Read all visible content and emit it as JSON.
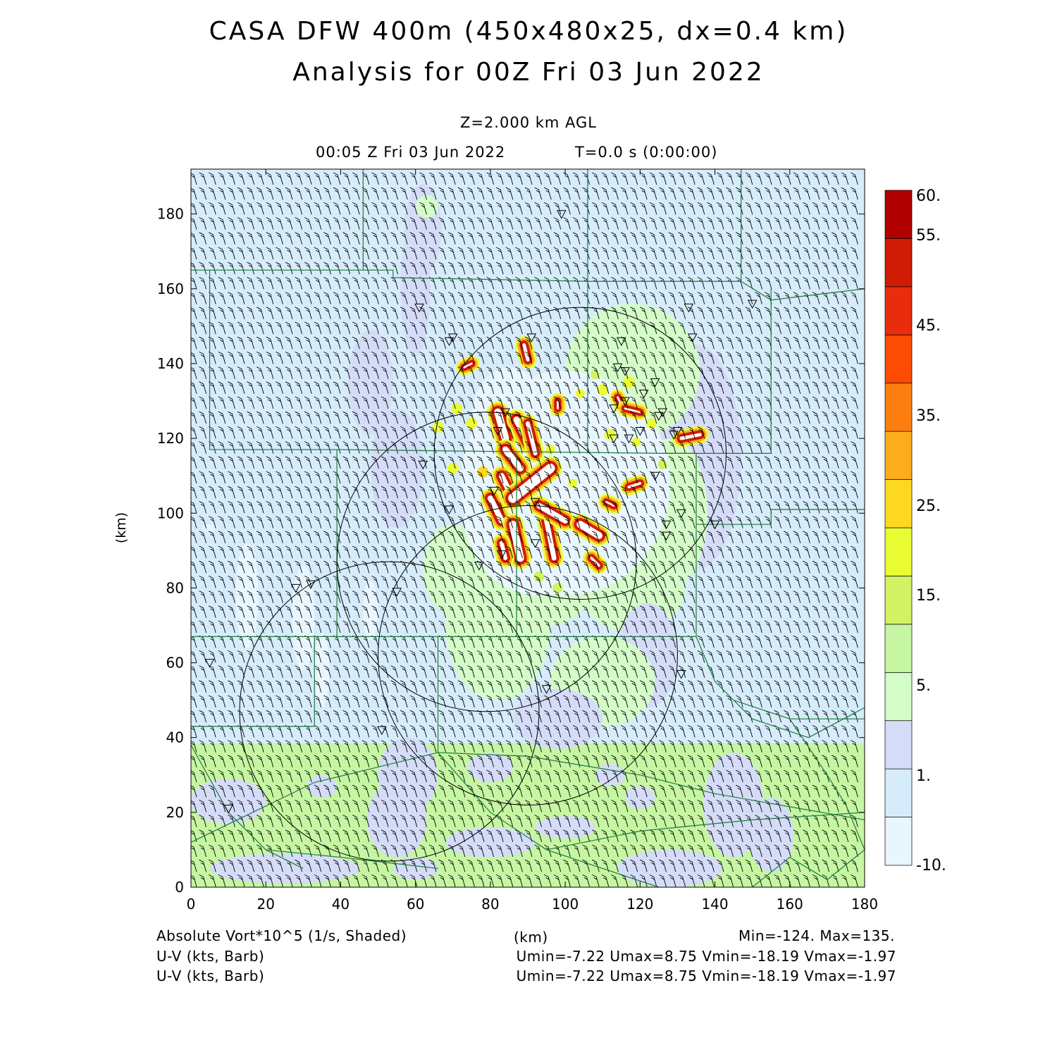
{
  "header": {
    "title_line1": "CASA DFW 400m (450x480x25, dx=0.4 km)",
    "title_line2": "Analysis for 00Z Fri 03 Jun 2022",
    "level": "Z=2.000 km AGL",
    "valid_time": "00:05 Z Fri 03 Jun 2022",
    "forecast_time": "T=0.0 s (0:00:00)"
  },
  "footer": {
    "field1_label": "Absolute Vort*10^5 (1/s, Shaded)",
    "x_unit_label": "(km)",
    "field1_stats": "Min=-124. Max=135.",
    "field2_label": "U-V (kts, Barb)",
    "field2_stats": "Umin=-7.22 Umax=8.75 Vmin=-18.19 Vmax=-1.97",
    "field3_label": "U-V (kts, Barb)",
    "field3_stats": "Umin=-7.22 Umax=8.75 Vmin=-18.19 Vmax=-1.97"
  },
  "chart_data": {
    "type": "heatmap",
    "xlabel": "(km)",
    "ylabel": "(km)",
    "xlim": [
      0,
      180
    ],
    "ylim": [
      0,
      192
    ],
    "x_ticks": [
      0,
      20,
      40,
      60,
      80,
      100,
      120,
      140,
      160,
      180
    ],
    "y_ticks": [
      0,
      20,
      40,
      60,
      80,
      100,
      120,
      140,
      160,
      180
    ],
    "colorbar": {
      "labels": [
        "60.",
        "55.",
        "45.",
        "35.",
        "25.",
        "15.",
        "5.",
        "1.",
        "-10."
      ],
      "label_positions": [
        60,
        55,
        45,
        35,
        25,
        15,
        5,
        1,
        -10
      ],
      "colors": [
        "#e8f6ff",
        "#d6ecfb",
        "#d4dcf8",
        "#d4fcc8",
        "#c6f6a2",
        "#d2f264",
        "#eafc34",
        "#fcd820",
        "#fcac1c",
        "#fc7e10",
        "#fc4c04",
        "#e82c0c",
        "#d01c04",
        "#b00000"
      ]
    },
    "radar_circles_km": [
      {
        "x": 104,
        "y": 116,
        "r": 39
      },
      {
        "x": 79,
        "y": 87,
        "r": 40
      },
      {
        "x": 90,
        "y": 62,
        "r": 40
      },
      {
        "x": 53,
        "y": 47,
        "r": 40
      }
    ],
    "wind_barbs": {
      "u_range_kts": [
        -7.22,
        8.75
      ],
      "v_range_kts": [
        -18.19,
        -1.97
      ]
    },
    "vorticity": {
      "min": -124,
      "max": 135
    },
    "stations_km": [
      [
        99,
        180
      ],
      [
        61,
        155
      ],
      [
        69,
        146
      ],
      [
        70,
        147
      ],
      [
        91,
        147
      ],
      [
        115,
        146
      ],
      [
        133,
        155
      ],
      [
        134,
        147
      ],
      [
        150,
        156
      ],
      [
        114,
        139
      ],
      [
        116,
        138
      ],
      [
        124,
        135
      ],
      [
        121,
        132
      ],
      [
        113,
        128
      ],
      [
        116,
        130
      ],
      [
        126,
        127
      ],
      [
        125,
        126
      ],
      [
        84,
        127
      ],
      [
        82,
        122
      ],
      [
        120,
        122
      ],
      [
        117,
        120
      ],
      [
        113,
        120
      ],
      [
        129,
        121
      ],
      [
        130,
        122
      ],
      [
        62,
        113
      ],
      [
        124,
        110
      ],
      [
        81,
        106
      ],
      [
        92,
        103
      ],
      [
        69,
        101
      ],
      [
        131,
        100
      ],
      [
        127,
        97
      ],
      [
        127,
        94
      ],
      [
        140,
        97
      ],
      [
        92,
        92
      ],
      [
        83,
        89
      ],
      [
        77,
        86
      ],
      [
        55,
        79
      ],
      [
        28,
        80
      ],
      [
        32,
        81
      ],
      [
        5,
        60
      ],
      [
        95,
        53
      ],
      [
        131,
        57
      ],
      [
        51,
        42
      ],
      [
        10,
        21
      ]
    ]
  }
}
